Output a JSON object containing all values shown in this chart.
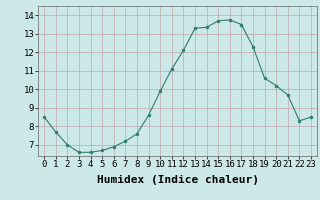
{
  "x": [
    0,
    1,
    2,
    3,
    4,
    5,
    6,
    7,
    8,
    9,
    10,
    11,
    12,
    13,
    14,
    15,
    16,
    17,
    18,
    19,
    20,
    21,
    22,
    23
  ],
  "y": [
    8.5,
    7.7,
    7.0,
    6.6,
    6.6,
    6.7,
    6.9,
    7.2,
    7.6,
    8.6,
    9.9,
    11.1,
    12.1,
    13.3,
    13.35,
    13.7,
    13.75,
    13.5,
    12.3,
    10.6,
    10.2,
    9.7,
    8.3,
    8.5
  ],
  "xlabel": "Humidex (Indice chaleur)",
  "ylim": [
    6.4,
    14.5
  ],
  "xlim": [
    -0.5,
    23.5
  ],
  "yticks": [
    7,
    8,
    9,
    10,
    11,
    12,
    13,
    14
  ],
  "xticks": [
    0,
    1,
    2,
    3,
    4,
    5,
    6,
    7,
    8,
    9,
    10,
    11,
    12,
    13,
    14,
    15,
    16,
    17,
    18,
    19,
    20,
    21,
    22,
    23
  ],
  "line_color": "#2e7d6e",
  "marker_color": "#2e7d6e",
  "bg_color": "#cce8e8",
  "grid_color": "#c0a8a8",
  "xlabel_fontsize": 8,
  "tick_fontsize": 6.5
}
